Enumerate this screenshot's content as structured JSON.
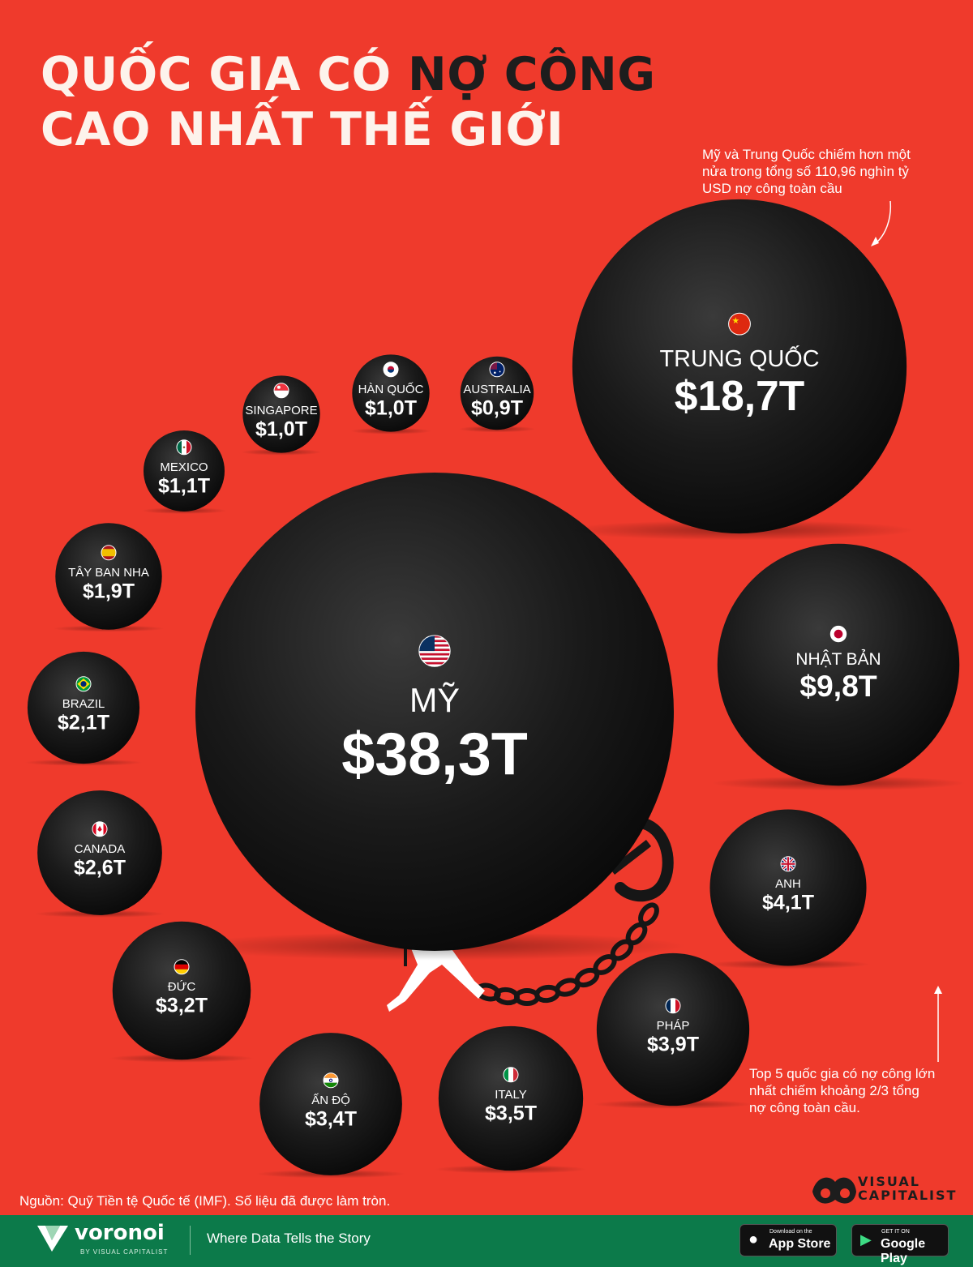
{
  "header": {
    "title_part1": "QUỐC GIA CÓ ",
    "title_highlight": "NỢ CÔNG",
    "title_line2": "CAO NHẤT THẾ GIỚI"
  },
  "notes": {
    "top_right": [
      "Mỹ và Trung Quốc chiếm hơn một",
      "nửa trong tổng số 110,96 nghìn tỷ",
      "USD nợ công toàn cầu"
    ],
    "bottom_right": [
      "Top 5 quốc gia có nợ công lớn",
      "nhất chiếm khoảng 2/3 tổng",
      "nợ công toàn cầu."
    ]
  },
  "chart_data": {
    "type": "bubble",
    "unit": "T",
    "categories": [
      "MỸ",
      "TRUNG QUỐC",
      "NHẬT BẢN",
      "ANH",
      "PHÁP",
      "ITALY",
      "ẤN ĐỘ",
      "ĐỨC",
      "CANADA",
      "BRAZIL",
      "TÂY BAN NHA",
      "MEXICO",
      "SINGAPORE",
      "HÀN QUỐC",
      "AUSTRALIA"
    ],
    "values": [
      38.3,
      18.7,
      9.8,
      4.1,
      3.9,
      3.5,
      3.4,
      3.2,
      2.6,
      2.1,
      1.9,
      1.1,
      1.0,
      1.0,
      0.9
    ],
    "labels": [
      "$38,3T",
      "$18,7T",
      "$9,8T",
      "$4,1T",
      "$3,9T",
      "$3,5T",
      "$3,4T",
      "$3,2T",
      "$2,6T",
      "$2,1T",
      "$1,9T",
      "$1,1T",
      "$1,0T",
      "$1,0T",
      "$0,9T"
    ],
    "flags": [
      "us-flag",
      "cn-flag",
      "jp-flag",
      "uk-flag",
      "fr-flag",
      "it-flag",
      "in-flag",
      "de-flag",
      "ca-flag",
      "br-flag",
      "es-flag",
      "mx-flag",
      "sg-flag",
      "kr-flag",
      "au-flag"
    ]
  },
  "footer": {
    "source": "Nguồn: Quỹ Tiền tệ Quốc tế (IMF). Số liệu đã được làm tròn.",
    "publisher_line1": "VISUAL",
    "publisher_line2": "CAPITALIST",
    "brand": "voronoi",
    "brand_sub": "BY VISUAL CAPITALIST",
    "tagline": "Where Data Tells the Story",
    "appstore_small": "Download on the",
    "appstore_big": "App Store",
    "googleplay_small": "GET IT ON",
    "googleplay_big": "Google Play"
  },
  "colors": {
    "background": "#ef3a2c",
    "ball": "#161616",
    "text_light": "#ffffff",
    "footer": "#0c7a4a"
  }
}
